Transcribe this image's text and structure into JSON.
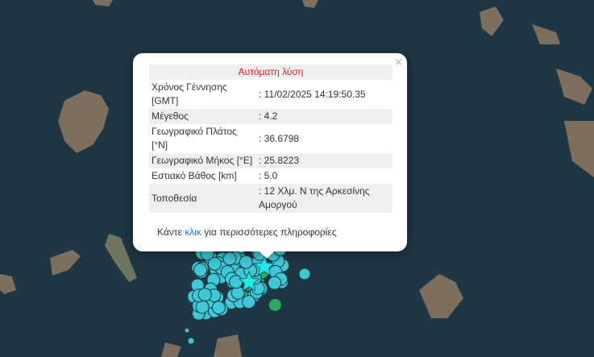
{
  "popup": {
    "title": "Αυτόματη λύση",
    "close": "×",
    "rows": [
      {
        "label": "Χρόνος Γέννησης [GMT]",
        "value": ": 11/02/2025 14:19:50.35"
      },
      {
        "label": "Μέγεθος",
        "value": ": 4.2"
      },
      {
        "label": "Γεωγραφικό Πλάτος [°N]",
        "value": ": 36.6798"
      },
      {
        "label": "Γεωγραφικό Μήκος [°E]",
        "value": ": 25.8223"
      },
      {
        "label": "Εστιακό Βάθος [km]",
        "value": ": 5.0"
      },
      {
        "label": "Τοποθεσία",
        "value": ": 12 Χλμ. Ν της Αρκεσίνης Αμοργού"
      }
    ],
    "more_prefix": "Κάντε",
    "more_link": "κλικ",
    "more_suffix": "για περισσότερες πληροφορίες"
  },
  "colors": {
    "sea": "#1e3442",
    "land": "#8a7a68",
    "recent_marker": "#3ec8d8",
    "older_marker": "#2ea860",
    "star": "#22e8e8",
    "title_red": "#e0202a"
  }
}
